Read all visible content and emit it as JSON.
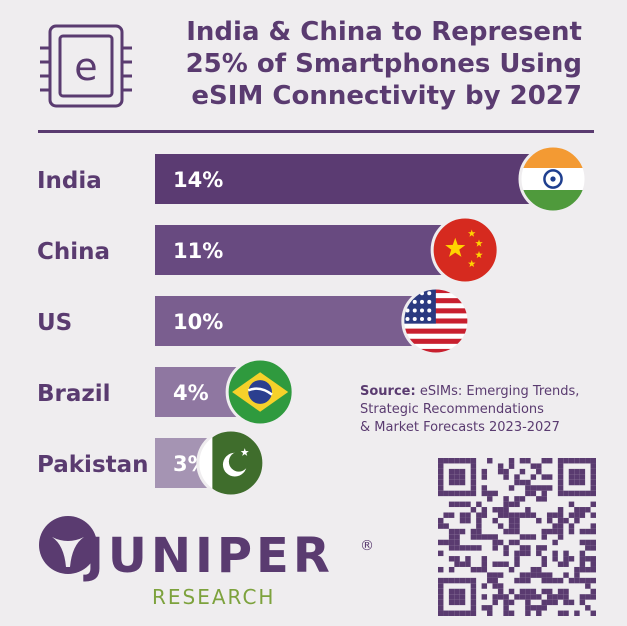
{
  "title": {
    "line1": "India & China to Represent",
    "line2": "25% of Smartphones Using",
    "line3": "eSIM Connectivity by 2027"
  },
  "logo_icon": "esim-chip-icon",
  "source": {
    "label": "Source:",
    "line1": "eSIMs: Emerging Trends,",
    "line2": "Strategic Recommendations",
    "line3": "& Market Forecasts 2023-2027"
  },
  "brand": {
    "name": "JUNIPER",
    "registered": "®",
    "sub": "RESEARCH"
  },
  "colors": {
    "background": "#efedef",
    "primary": "#5a3b70",
    "accent_green": "#7da23d"
  },
  "chart_data": {
    "type": "bar",
    "orientation": "horizontal",
    "categories": [
      "India",
      "China",
      "US",
      "Brazil",
      "Pakistan"
    ],
    "values": [
      14,
      11,
      10,
      4,
      3
    ],
    "value_labels": [
      "14%",
      "11%",
      "10%",
      "4%",
      "3%"
    ],
    "unit": "%",
    "bar_colors": [
      "#5b3b72",
      "#684a80",
      "#7a5e8f",
      "#8f77a1",
      "#a594b3"
    ],
    "flags": [
      "india-flag-icon",
      "china-flag-icon",
      "us-flag-icon",
      "brazil-flag-icon",
      "pakistan-flag-icon"
    ],
    "title": "",
    "xlabel": "",
    "ylabel": ""
  }
}
